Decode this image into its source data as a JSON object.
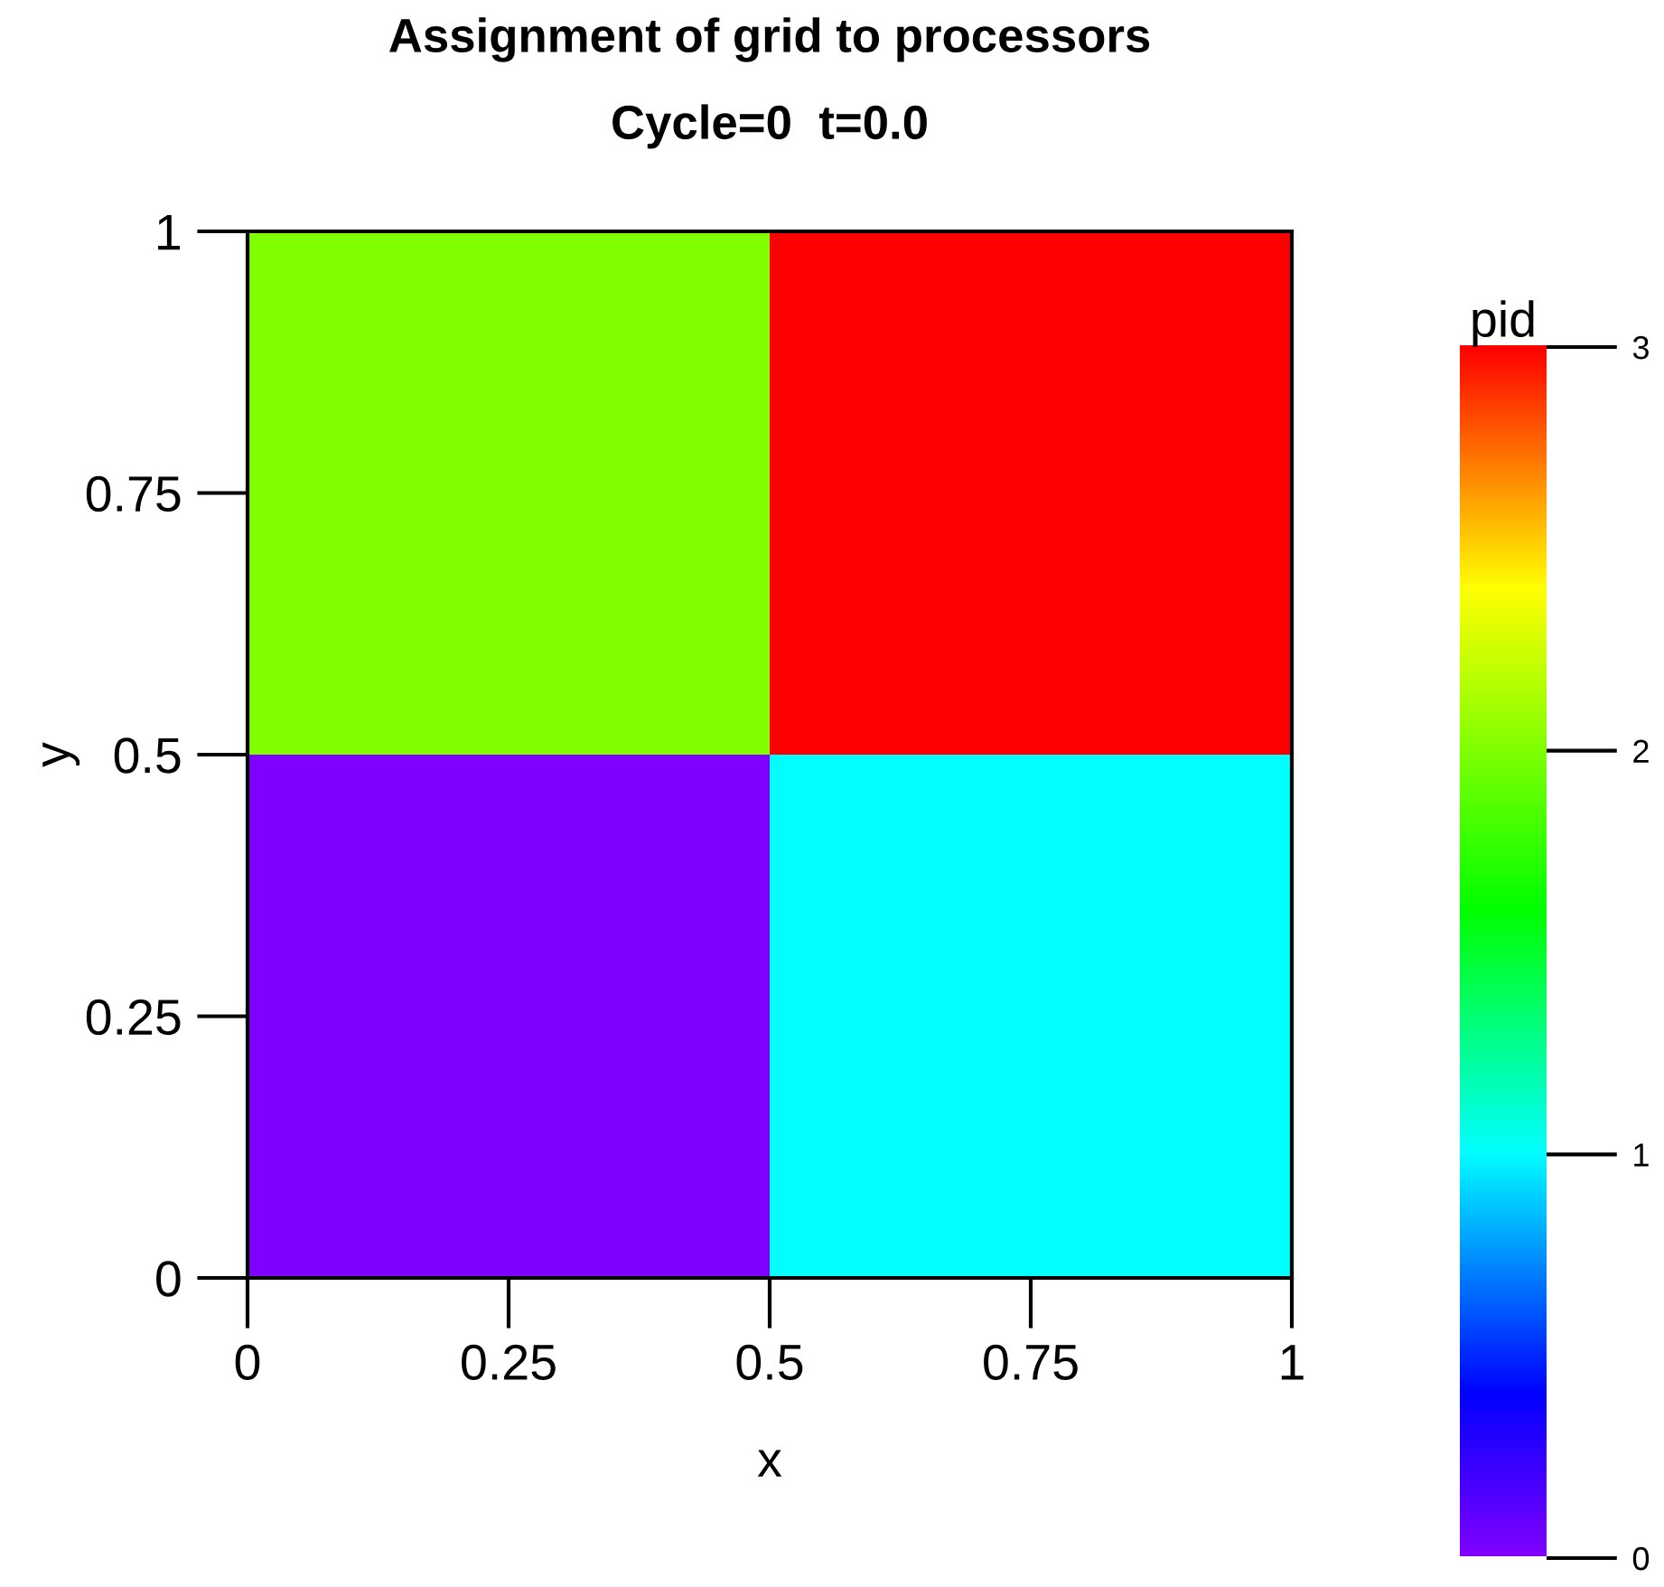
{
  "chart_data": {
    "type": "heatmap",
    "title": "Assignment of grid to processors",
    "subtitle": "Cycle=0  t=0.0",
    "xlabel": "x",
    "ylabel": "y",
    "clabel": "pid",
    "xlim": [
      0,
      1
    ],
    "ylim": [
      0,
      1
    ],
    "xticks": [
      0,
      0.25,
      0.5,
      0.75,
      1
    ],
    "yticks": [
      0,
      0.25,
      0.5,
      0.75,
      1
    ],
    "cells": [
      [
        2,
        3
      ],
      [
        0,
        1
      ]
    ],
    "clim": [
      0,
      3
    ],
    "cticks": [
      0,
      1,
      2,
      3
    ],
    "grid": false
  }
}
